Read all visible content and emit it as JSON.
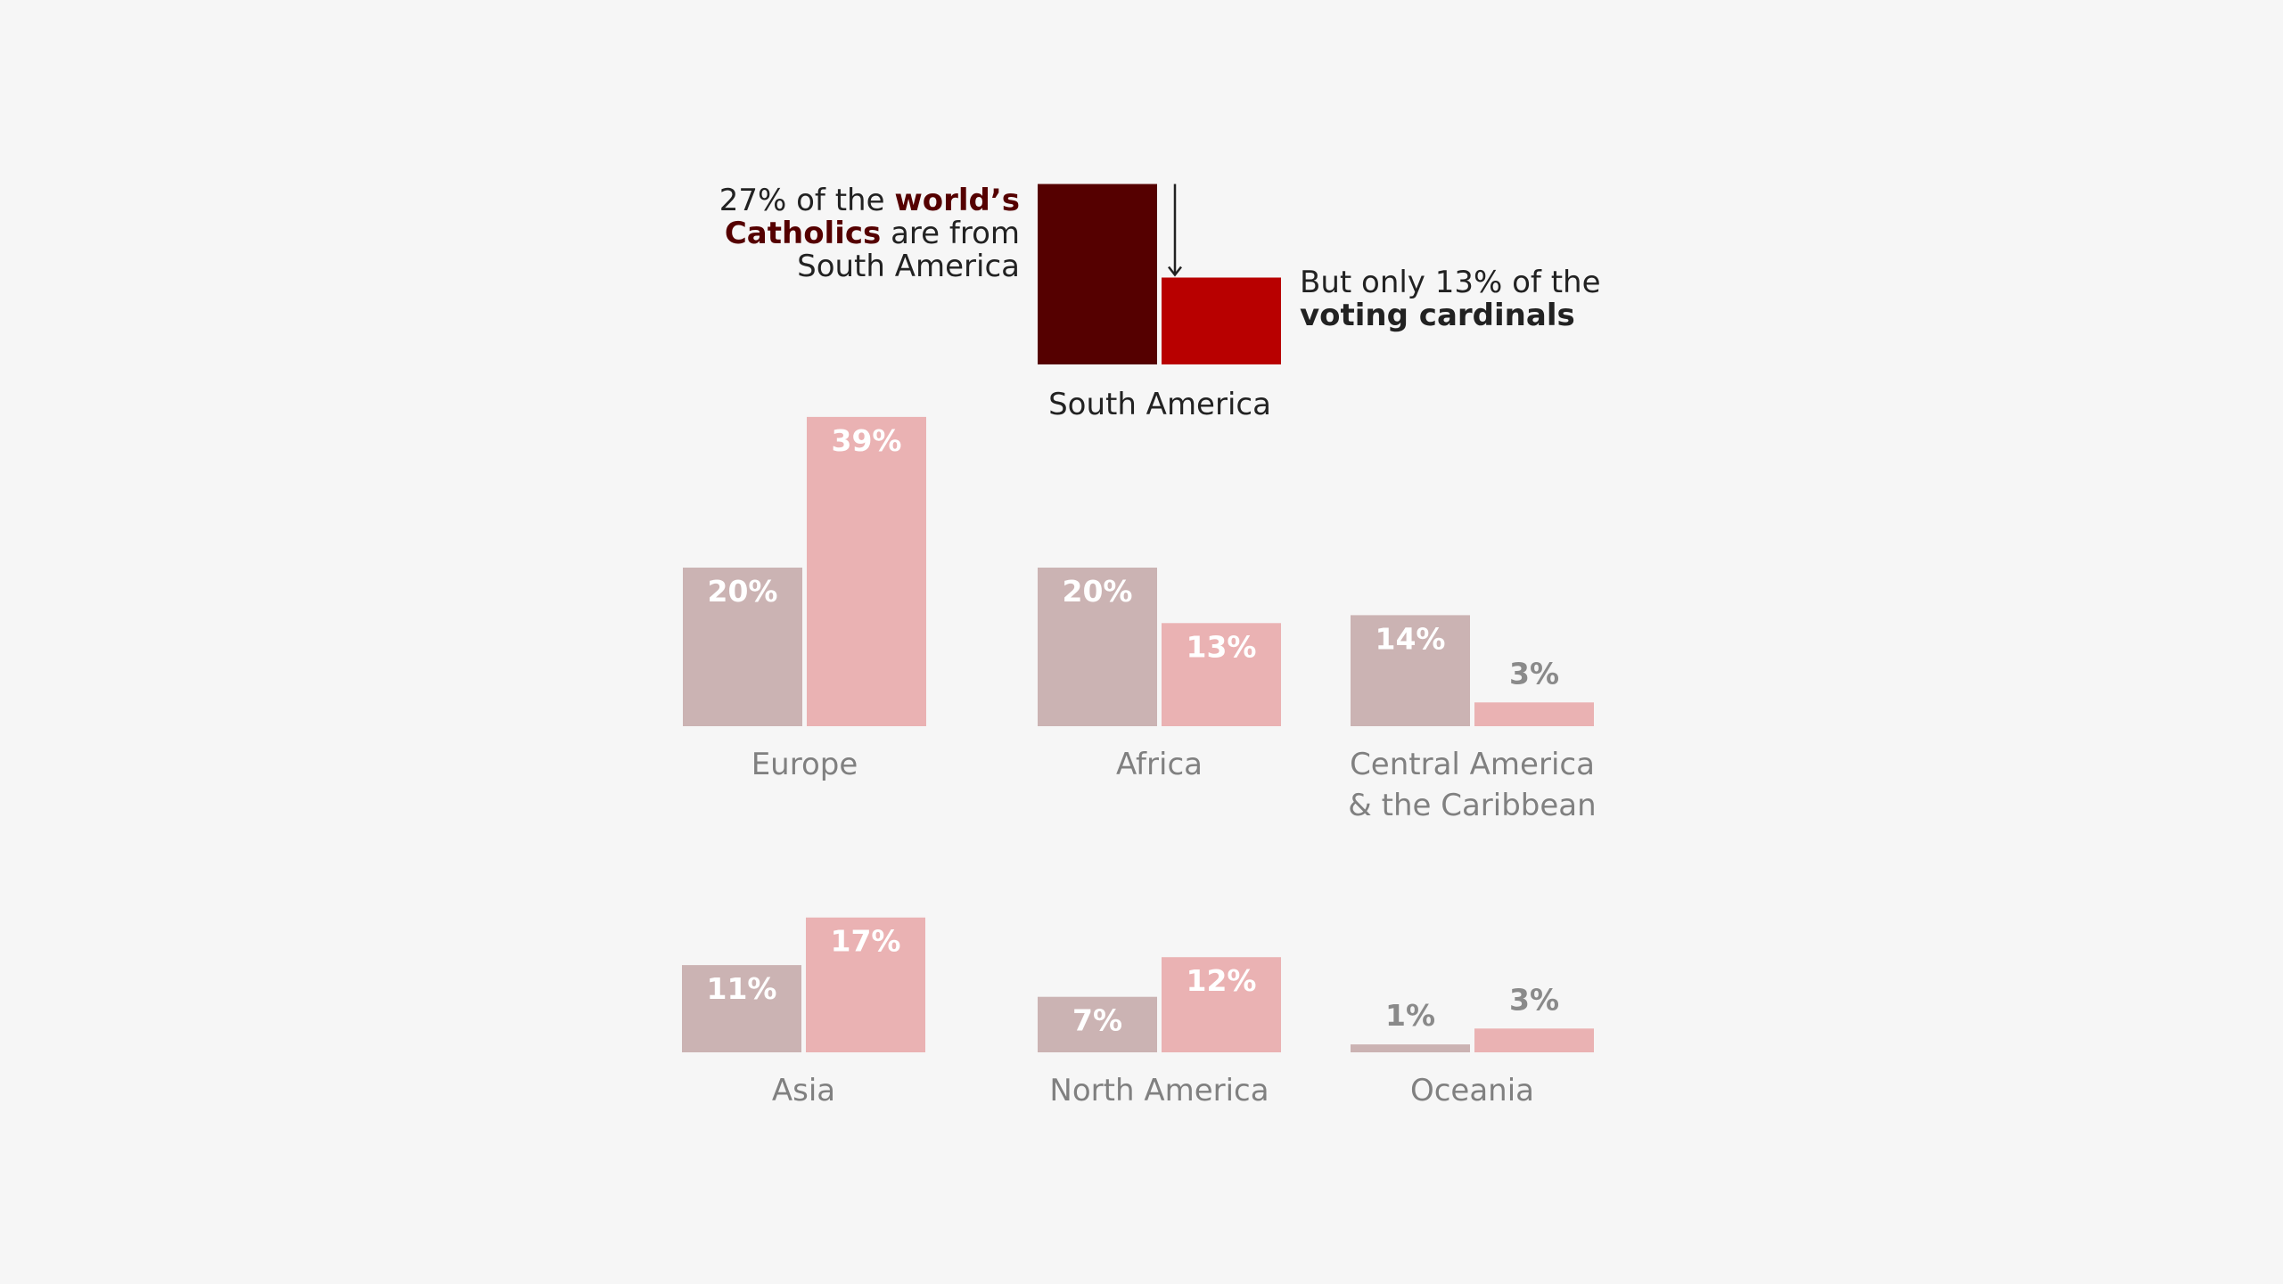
{
  "chart_data": {
    "type": "bar",
    "series": [
      {
        "key": "catholics",
        "color_muted": "#cbb3b3",
        "color_highlight": "#550000"
      },
      {
        "key": "cardinals",
        "color_muted": "#eab2b3",
        "color_highlight": "#b80000"
      }
    ],
    "highlight_region": {
      "name": "South America",
      "catholics": 27,
      "cardinals": 13,
      "annotation_left": {
        "line1_pre": "27% of the ",
        "line1_bold": "world’s",
        "line2_bold": "Catholics",
        "line2_post": " are from",
        "line3": "South America"
      },
      "annotation_right": {
        "line1": "But only 13% of the",
        "line2_bold": "voting cardinals"
      }
    },
    "regions": [
      {
        "name": [
          "Europe"
        ],
        "catholics": 20,
        "cardinals": 39,
        "catholics_label": "20%",
        "cardinals_label": "39%"
      },
      {
        "name": [
          "Africa"
        ],
        "catholics": 20,
        "cardinals": 13,
        "catholics_label": "20%",
        "cardinals_label": "13%"
      },
      {
        "name": [
          "Central America",
          "& the Caribbean"
        ],
        "catholics": 14,
        "cardinals": 3,
        "catholics_label": "14%",
        "cardinals_label": "3%"
      },
      {
        "name": [
          "Asia"
        ],
        "catholics": 11,
        "cardinals": 17,
        "catholics_label": "11%",
        "cardinals_label": "17%"
      },
      {
        "name": [
          "North America"
        ],
        "catholics": 7,
        "cardinals": 12,
        "catholics_label": "7%",
        "cardinals_label": "12%"
      },
      {
        "name": [
          "Oceania"
        ],
        "catholics": 1,
        "cardinals": 3,
        "catholics_label": "1%",
        "cardinals_label": "3%"
      }
    ]
  }
}
